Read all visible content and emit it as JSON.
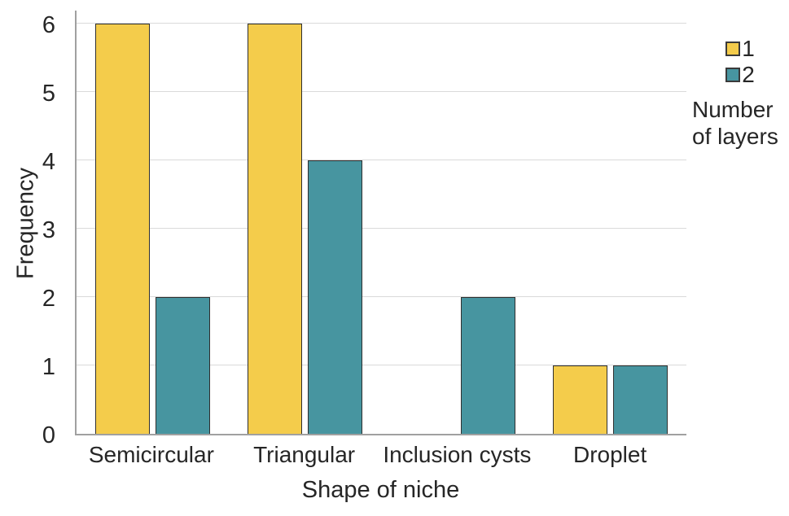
{
  "chart_data": {
    "type": "bar",
    "title": "",
    "categories": [
      "Semicircular",
      "Triangular",
      "Inclusion cysts",
      "Droplet"
    ],
    "series": [
      {
        "name": "1",
        "color": "#F4CC4B",
        "values": [
          6,
          6,
          0,
          1
        ]
      },
      {
        "name": "2",
        "color": "#4795A0",
        "values": [
          2,
          4,
          2,
          1
        ]
      }
    ],
    "xlabel": "Shape of niche",
    "ylabel": "Frequency",
    "ylim": [
      0,
      6
    ],
    "yticks": [
      0,
      1,
      2,
      3,
      4,
      5,
      6
    ],
    "grid": "horizontal",
    "legend": {
      "title": "Number of layers",
      "position": "top-right",
      "entries": [
        "1",
        "2"
      ]
    }
  },
  "colors": {
    "series_1": "#F4CC4B",
    "series_2": "#4795A0",
    "bar_border": "#2f2f2f",
    "gridline": "#dadada",
    "axis_line": "#a0a0a0",
    "text": "#262626",
    "background": "#ffffff"
  }
}
